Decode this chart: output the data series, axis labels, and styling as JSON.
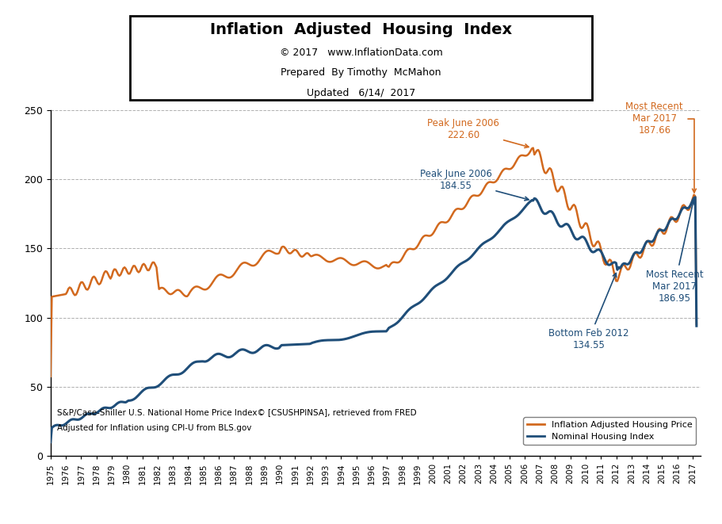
{
  "title": "Inflation  Adjusted  Housing  Index",
  "subtitle1": "© 2017   www.InflationData.com",
  "subtitle2": "Prepared  By Timothy  McMahon",
  "subtitle3": "Updated   6/14/  2017",
  "source_text1": "S&P/Case-Shiller U.S. National Home Price Index© [CSUSHPINSA], retrieved from FRED",
  "source_text2": "Adjusted for Inflation using CPI-U from BLS.gov",
  "legend_label1": "Inflation Adjusted Housing Price",
  "legend_label2": "Nominal Housing Index",
  "orange_color": "#D2691E",
  "blue_color": "#1F4E79",
  "ylim": [
    0,
    250
  ],
  "yticks": [
    0,
    50,
    100,
    150,
    200,
    250
  ],
  "grid_color": "#B0B0B0"
}
